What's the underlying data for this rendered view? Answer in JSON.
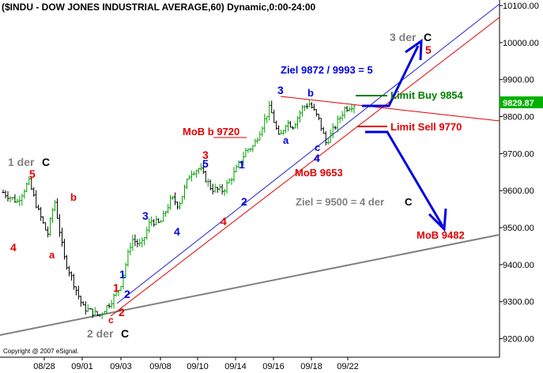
{
  "chart_data": {
    "type": "bar",
    "title": "($INDU - DOW JONES INDUSTRIAL AVERAGE,60) Dynamic,0:00-24:00",
    "x_tick_labels": [
      "08/28",
      "09/01",
      "09/03",
      "09/08",
      "09/10",
      "09/14",
      "09/16",
      "09/18",
      "09/22"
    ],
    "y_tick_labels": [
      "9200.00",
      "9300.00",
      "9400.00",
      "9500.00",
      "9600.00",
      "9700.00",
      "9800.00",
      "9900.00",
      "10000.00",
      "10100.00"
    ],
    "y_ticks": [
      9200,
      9300,
      9400,
      9500,
      9600,
      9700,
      9800,
      9900,
      10000,
      10100
    ],
    "ylim": [
      9150,
      10115
    ],
    "bar_count": 150,
    "last_price": {
      "label": "9829.87",
      "value": 9829.87
    },
    "path_points": [
      [
        0,
        9595
      ],
      [
        6,
        9570
      ],
      [
        11,
        9625
      ],
      [
        15,
        9545
      ],
      [
        19,
        9480
      ],
      [
        22,
        9575
      ],
      [
        26,
        9420
      ],
      [
        34,
        9285
      ],
      [
        41,
        9262
      ],
      [
        46,
        9300
      ],
      [
        50,
        9340
      ],
      [
        55,
        9470
      ],
      [
        59,
        9450
      ],
      [
        63,
        9520
      ],
      [
        67,
        9510
      ],
      [
        72,
        9580
      ],
      [
        75,
        9560
      ],
      [
        80,
        9650
      ],
      [
        84,
        9660
      ],
      [
        89,
        9605
      ],
      [
        94,
        9600
      ],
      [
        99,
        9650
      ],
      [
        104,
        9710
      ],
      [
        107,
        9720
      ],
      [
        111,
        9780
      ],
      [
        114,
        9825
      ],
      [
        118,
        9740
      ],
      [
        121,
        9785
      ],
      [
        124,
        9775
      ],
      [
        128,
        9825
      ],
      [
        131,
        9835
      ],
      [
        135,
        9790
      ],
      [
        138,
        9728
      ],
      [
        142,
        9775
      ],
      [
        146,
        9822
      ],
      [
        150,
        9833
      ]
    ],
    "annotations": [
      {
        "text": "1 der",
        "color": "#808080"
      },
      {
        "text": "C",
        "color": "#000000"
      },
      {
        "text": "5",
        "color": "#e00000"
      },
      {
        "text": "4",
        "color": "#e00000"
      },
      {
        "text": "b",
        "color": "#e00000"
      },
      {
        "text": "a",
        "color": "#e00000"
      },
      {
        "text": "1",
        "color": "#e00000"
      },
      {
        "text": "2",
        "color": "#e00000"
      },
      {
        "text": "c",
        "color": "#e00000"
      },
      {
        "text": "1",
        "color": "#0000e0"
      },
      {
        "text": "2",
        "color": "#0000e0"
      },
      {
        "text": "2 der",
        "color": "#808080"
      },
      {
        "text": "C",
        "color": "#000000"
      },
      {
        "text": "3",
        "color": "#0000e0"
      },
      {
        "text": "4",
        "color": "#0000e0"
      },
      {
        "text": "3",
        "color": "#e00000"
      },
      {
        "text": "5",
        "color": "#0000e0"
      },
      {
        "text": "4",
        "color": "#e00000"
      },
      {
        "text": "1",
        "color": "#0000e0"
      },
      {
        "text": "2",
        "color": "#0000e0"
      },
      {
        "text": "3",
        "color": "#0000e0"
      },
      {
        "text": "a",
        "color": "#0000e0"
      },
      {
        "text": "b",
        "color": "#0000e0"
      },
      {
        "text": "c",
        "color": "#0000e0"
      },
      {
        "text": "4",
        "color": "#0000e0"
      },
      {
        "text": "MoB b 9720",
        "color": "#e00000"
      },
      {
        "text": "MoB 9653",
        "color": "#e00000"
      },
      {
        "text": "Ziel 9872 / 9993 =  5",
        "color": "#0000e0"
      },
      {
        "text": "Limit Buy 9854",
        "color": "#008000"
      },
      {
        "text": "Limit Sell 9770",
        "color": "#e00000"
      },
      {
        "text": "Ziel = 9500 = 4 der",
        "color": "#808080"
      },
      {
        "text": "C",
        "color": "#000000"
      },
      {
        "text": "MoB 9482",
        "color": "#e00000"
      },
      {
        "text": "3 der",
        "color": "#808080"
      },
      {
        "text": "C",
        "color": "#000000"
      },
      {
        "text": "5",
        "color": "#e00000"
      }
    ],
    "copyright": "Copyright @ 2007 eSignal.",
    "colors": {
      "up_bar": "#00a000",
      "down_bar": "#000000",
      "blue": "#0000e0",
      "red": "#e00000",
      "green": "#008000",
      "gray": "#808080",
      "last_price_bg": "#00b000"
    }
  }
}
